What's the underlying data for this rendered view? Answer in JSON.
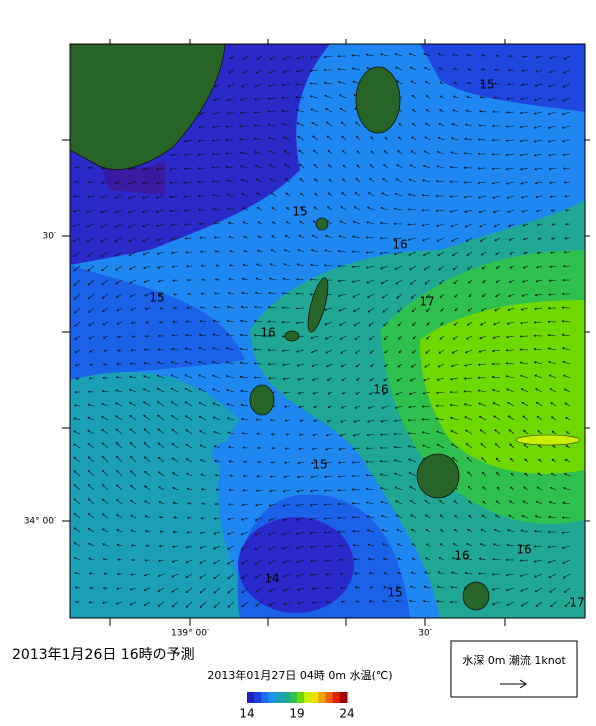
{
  "map": {
    "title": "2013年1月26日  16時の予測",
    "subtitle": "2013年01月27日 04時 0m 水温(℃)",
    "contour_labels": [
      "15",
      "15",
      "15",
      "15",
      "15",
      "16",
      "16",
      "16",
      "16",
      "16",
      "17",
      "17",
      "14"
    ],
    "lat_labels": [
      "30′",
      "34° 00′"
    ],
    "lon_labels": [
      "139° 00′",
      "30′"
    ],
    "colorbar": {
      "range": [
        14,
        24
      ],
      "ticks": [
        14,
        19,
        24
      ]
    },
    "legend": {
      "label": "水深 0m 潮流 1knot"
    }
  }
}
